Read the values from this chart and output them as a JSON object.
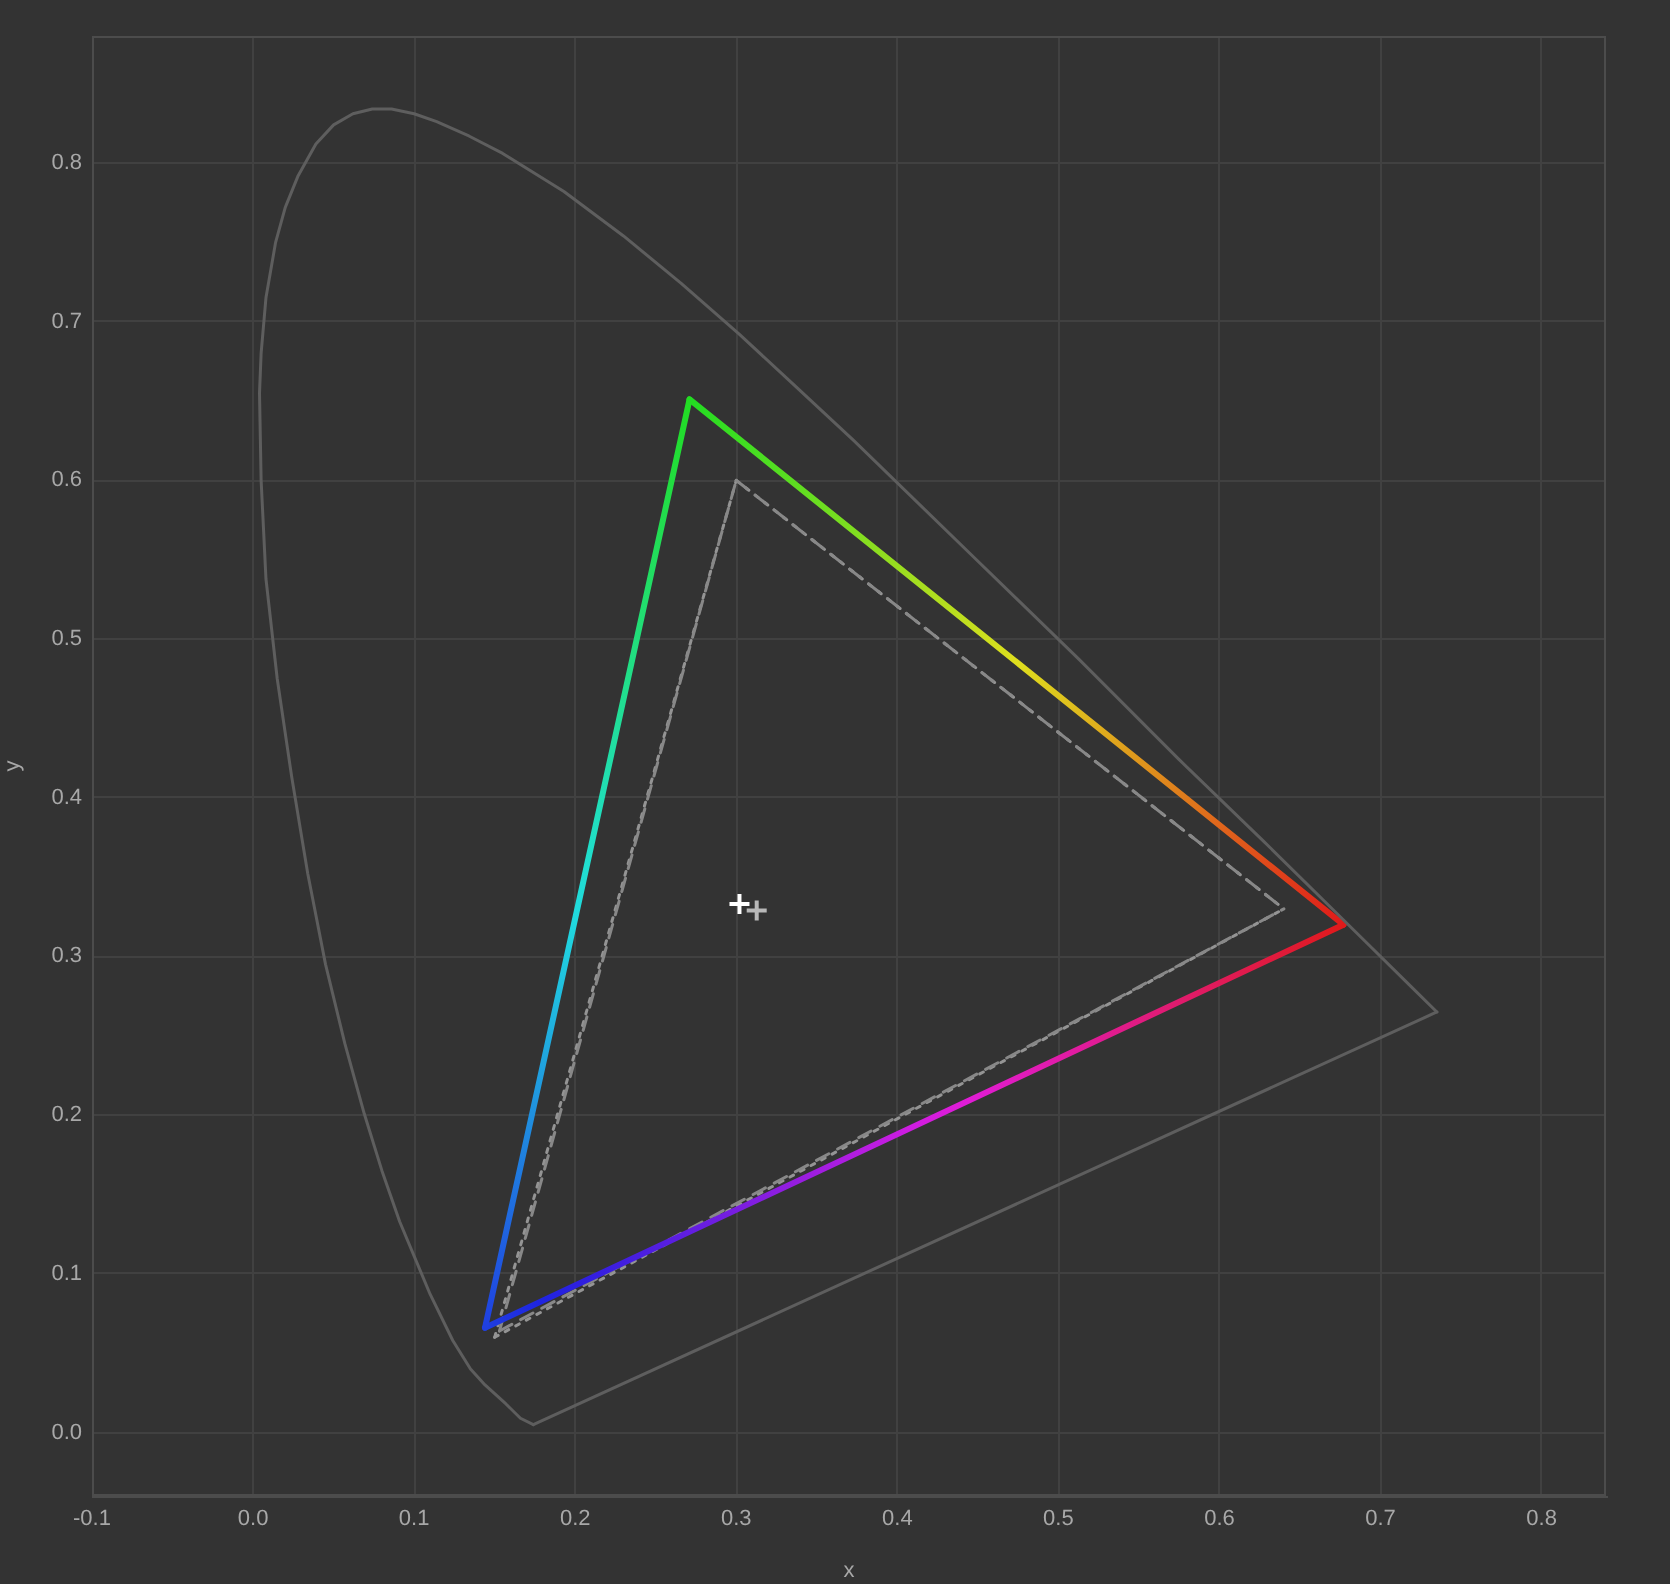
{
  "chart_data": {
    "type": "line",
    "xlabel": "x",
    "ylabel": "y",
    "xlim": [
      -0.1,
      0.84
    ],
    "ylim": [
      -0.04,
      0.88
    ],
    "xticks": [
      -0.1,
      {
        "value": 0,
        "label": "0.0"
      },
      0.1,
      0.2,
      0.3,
      0.4,
      0.5,
      0.6,
      0.7,
      0.8
    ],
    "yticks": [
      {
        "value": 0,
        "label": "0.0"
      },
      0.1,
      0.2,
      0.3,
      0.4,
      0.5,
      0.6,
      0.7,
      0.8
    ],
    "grid": true,
    "legend": false,
    "marker": "none",
    "line_style": "solid",
    "series": [
      {
        "color": "#5e5e5e",
        "x": [
          0.174,
          0.166,
          0.157,
          0.144,
          0.135,
          0.124,
          0.11,
          0.091,
          0.08,
          0.069,
          0.057,
          0.045,
          0.034,
          0.024,
          0.015,
          0.008,
          0.005,
          0.004,
          0.005,
          0.008,
          0.014,
          0.02,
          0.028,
          0.039,
          0.05,
          0.062,
          0.074,
          0.086,
          0.1,
          0.114,
          0.134,
          0.155,
          0.193,
          0.23,
          0.266,
          0.302,
          0.337,
          0.373,
          0.444,
          0.513,
          0.575,
          0.627,
          0.666,
          0.692,
          0.719,
          0.735
        ],
        "values": [
          0.005,
          0.009,
          0.018,
          0.03,
          0.04,
          0.058,
          0.087,
          0.133,
          0.165,
          0.201,
          0.245,
          0.295,
          0.352,
          0.413,
          0.475,
          0.538,
          0.6,
          0.655,
          0.68,
          0.715,
          0.75,
          0.772,
          0.792,
          0.812,
          0.824,
          0.831,
          0.834,
          0.834,
          0.831,
          0.826,
          0.817,
          0.806,
          0.782,
          0.754,
          0.724,
          0.692,
          0.659,
          0.625,
          0.555,
          0.487,
          0.424,
          0.373,
          0.334,
          0.308,
          0.281,
          0.265
        ]
      },
      {
        "color": "#5e5e5e",
        "x": [
          0.174,
          0.735
        ],
        "values": [
          0.005,
          0.265
        ]
      },
      {
        "colors": [
          "#22dd22",
          "#e01a1a"
        ],
        "x": [
          0.271,
          0.677
        ],
        "values": [
          0.651,
          0.32
        ]
      },
      {
        "colors": [
          "#1f3fe0",
          "#22dd22"
        ],
        "x": [
          0.144,
          0.271
        ],
        "values": [
          0.066,
          0.651
        ]
      },
      {
        "colors": [
          "#1f3fe0",
          "#e01a1a"
        ],
        "x": [
          0.144,
          0.677
        ],
        "values": [
          0.066,
          0.32
        ]
      },
      {
        "color": "#888888",
        "line_style": "dashed",
        "x": [
          0.3,
          0.64
        ],
        "values": [
          0.6,
          0.33
        ]
      },
      {
        "color": "#888888",
        "line_style": "dashed",
        "x": [
          0.153,
          0.3
        ],
        "values": [
          0.064,
          0.6
        ]
      },
      {
        "color": "#888888",
        "line_style": "dashed",
        "x": [
          0.153,
          0.64
        ],
        "values": [
          0.064,
          0.33
        ]
      },
      {
        "color": "#949494",
        "line_style": "dotted",
        "x": [
          0.3,
          0.64
        ],
        "values": [
          0.6,
          0.33
        ]
      },
      {
        "color": "#949494",
        "line_style": "dotted",
        "x": [
          0.15,
          0.3
        ],
        "values": [
          0.06,
          0.6
        ]
      },
      {
        "color": "#949494",
        "line_style": "dotted",
        "x": [
          0.15,
          0.64
        ],
        "values": [
          0.06,
          0.33
        ]
      },
      {
        "type": "scatter",
        "marker": "cross",
        "color": "#ffffff",
        "x": [
          0.302
        ],
        "values": [
          0.333
        ]
      },
      {
        "type": "scatter",
        "marker": "cross",
        "color": "#b8b8b8",
        "x": [
          0.3127
        ],
        "values": [
          0.329
        ]
      }
    ]
  }
}
